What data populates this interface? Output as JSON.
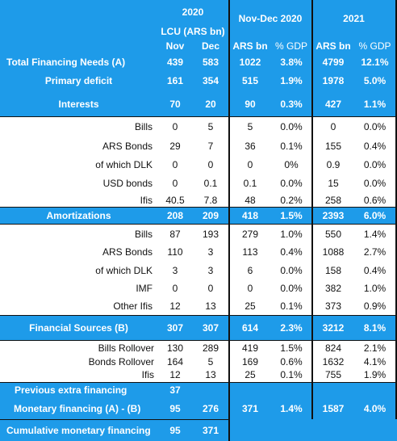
{
  "header": {
    "col_2020": "2020",
    "col_novdec": "Nov-Dec 2020",
    "col_2021": "2021",
    "lcu": "LCU (ARS bn)",
    "nov": "Nov",
    "dec": "Dec",
    "ars_bn_1": "ARS bn",
    "gdp_1": "% GDP",
    "ars_bn_2": "ARS bn",
    "gdp_2": "% GDP"
  },
  "rows": {
    "total_financing_needs": {
      "label": "Total Financing Needs (A)",
      "nov": "439",
      "dec": "583",
      "nd_ars": "1022",
      "nd_gdp": "3.8%",
      "y_ars": "4799",
      "y_gdp": "12.1%"
    },
    "primary_deficit": {
      "label": "Primary deficit",
      "nov": "161",
      "dec": "354",
      "nd_ars": "515",
      "nd_gdp": "1.9%",
      "y_ars": "1978",
      "y_gdp": "5.0%"
    },
    "interests": {
      "label": "Interests",
      "nov": "70",
      "dec": "20",
      "nd_ars": "90",
      "nd_gdp": "0.3%",
      "y_ars": "427",
      "y_gdp": "1.1%"
    },
    "int_bills": {
      "label": "Bills",
      "nov": "0",
      "dec": "5",
      "nd_ars": "5",
      "nd_gdp": "0.0%",
      "y_ars": "0",
      "y_gdp": "0.0%"
    },
    "int_ars_bonds": {
      "label": "ARS Bonds",
      "nov": "29",
      "dec": "7",
      "nd_ars": "36",
      "nd_gdp": "0.1%",
      "y_ars": "155",
      "y_gdp": "0.4%"
    },
    "int_dlk": {
      "label": "of which DLK",
      "nov": "0",
      "dec": "0",
      "nd_ars": "0",
      "nd_gdp": "0%",
      "y_ars": "0.9",
      "y_gdp": "0.0%"
    },
    "int_usd_bonds": {
      "label": "USD bonds",
      "nov": "0",
      "dec": "0.1",
      "nd_ars": "0.1",
      "nd_gdp": "0.0%",
      "y_ars": "15",
      "y_gdp": "0.0%"
    },
    "int_ifis": {
      "label": "Ifis",
      "nov": "40.5",
      "dec": "7.8",
      "nd_ars": "48",
      "nd_gdp": "0.2%",
      "y_ars": "258",
      "y_gdp": "0.6%"
    },
    "amortizations": {
      "label": "Amortizations",
      "nov": "208",
      "dec": "209",
      "nd_ars": "418",
      "nd_gdp": "1.5%",
      "y_ars": "2393",
      "y_gdp": "6.0%"
    },
    "am_bills": {
      "label": "Bills",
      "nov": "87",
      "dec": "193",
      "nd_ars": "279",
      "nd_gdp": "1.0%",
      "y_ars": "550",
      "y_gdp": "1.4%"
    },
    "am_ars_bonds": {
      "label": "ARS Bonds",
      "nov": "110",
      "dec": "3",
      "nd_ars": "113",
      "nd_gdp": "0.4%",
      "y_ars": "1088",
      "y_gdp": "2.7%"
    },
    "am_dlk": {
      "label": "of which DLK",
      "nov": "3",
      "dec": "3",
      "nd_ars": "6",
      "nd_gdp": "0.0%",
      "y_ars": "158",
      "y_gdp": "0.4%"
    },
    "am_imf": {
      "label": "IMF",
      "nov": "0",
      "dec": "0",
      "nd_ars": "0",
      "nd_gdp": "0.0%",
      "y_ars": "382",
      "y_gdp": "1.0%"
    },
    "am_other_ifis": {
      "label": "Other Ifis",
      "nov": "12",
      "dec": "13",
      "nd_ars": "25",
      "nd_gdp": "0.1%",
      "y_ars": "373",
      "y_gdp": "0.9%"
    },
    "financial_sources": {
      "label": "Financial Sources (B)",
      "nov": "307",
      "dec": "307",
      "nd_ars": "614",
      "nd_gdp": "2.3%",
      "y_ars": "3212",
      "y_gdp": "8.1%"
    },
    "fs_bills_rollover": {
      "label": "Bills Rollover",
      "nov": "130",
      "dec": "289",
      "nd_ars": "419",
      "nd_gdp": "1.5%",
      "y_ars": "824",
      "y_gdp": "2.1%"
    },
    "fs_bonds_rollover": {
      "label": "Bonds Rollover",
      "nov": "164",
      "dec": "5",
      "nd_ars": "169",
      "nd_gdp": "0.6%",
      "y_ars": "1632",
      "y_gdp": "4.1%"
    },
    "fs_ifis": {
      "label": "Ifis",
      "nov": "12",
      "dec": "13",
      "nd_ars": "25",
      "nd_gdp": "0.1%",
      "y_ars": "755",
      "y_gdp": "1.9%"
    },
    "previous_extra_financing": {
      "label": "Previous extra financing",
      "nov": "37"
    },
    "monetary_financing": {
      "label": "Monetary financing (A) - (B)",
      "nov": "95",
      "dec": "276",
      "nd_ars": "371",
      "nd_gdp": "1.4%",
      "y_ars": "1587",
      "y_gdp": "4.0%"
    },
    "cumulative_monetary_financing": {
      "label": "Cumulative monetary financing",
      "nov": "95",
      "dec": "371"
    }
  },
  "colors": {
    "header_blue": "#1e9be9",
    "text_white": "#ffffff",
    "text_dark": "#111111",
    "lines": "#111111"
  }
}
